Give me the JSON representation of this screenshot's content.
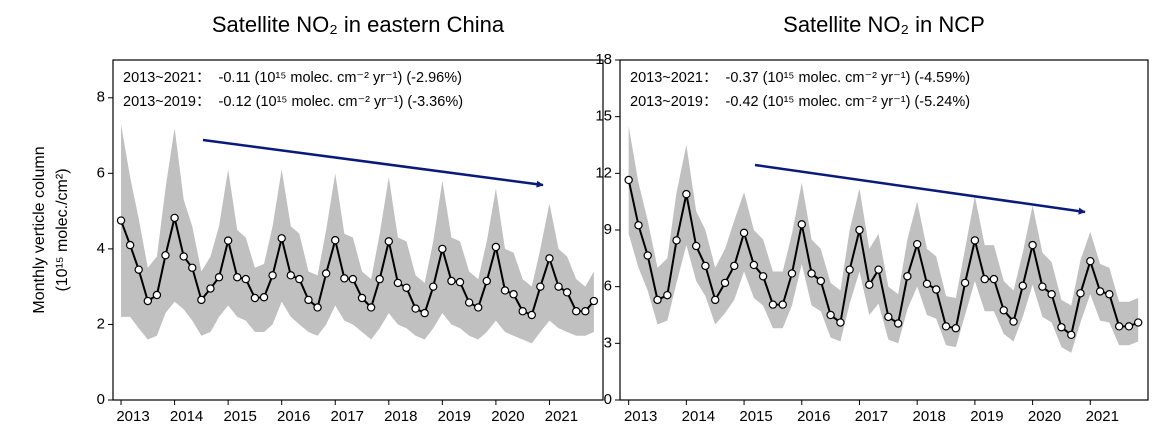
{
  "chart_data": [
    {
      "type": "line",
      "title": "Satellite NO₂ in eastern China",
      "ylabel": [
        "Monthly verticle column",
        "(10¹⁵ molec./cm²)"
      ],
      "annotations": [
        "2013~2021：  -0.11 (10¹⁵ molec. cm⁻² yr⁻¹) (-2.96%)",
        "2013~2019：  -0.12 (10¹⁵ molec. cm⁻² yr⁻¹) (-3.36%)"
      ],
      "x": [
        2013,
        2013.17,
        2013.33,
        2013.5,
        2013.67,
        2013.83,
        2014,
        2014.17,
        2014.33,
        2014.5,
        2014.67,
        2014.83,
        2015,
        2015.17,
        2015.33,
        2015.5,
        2015.67,
        2015.83,
        2016,
        2016.17,
        2016.33,
        2016.5,
        2016.67,
        2016.83,
        2017,
        2017.17,
        2017.33,
        2017.5,
        2017.67,
        2017.83,
        2018,
        2018.17,
        2018.33,
        2018.5,
        2018.67,
        2018.83,
        2019,
        2019.17,
        2019.33,
        2019.5,
        2019.67,
        2019.83,
        2020,
        2020.17,
        2020.33,
        2020.5,
        2020.67,
        2020.83,
        2021,
        2021.17,
        2021.33,
        2021.5,
        2021.67,
        2021.83
      ],
      "values": [
        4.75,
        4.1,
        3.45,
        2.62,
        2.78,
        3.83,
        4.82,
        3.8,
        3.5,
        2.65,
        2.95,
        3.25,
        4.22,
        3.25,
        3.2,
        2.7,
        2.72,
        3.3,
        4.28,
        3.3,
        3.2,
        2.65,
        2.45,
        3.35,
        4.23,
        3.22,
        3.2,
        2.7,
        2.45,
        3.2,
        4.2,
        3.1,
        2.97,
        2.42,
        2.3,
        3.0,
        4.0,
        3.15,
        3.12,
        2.58,
        2.45,
        3.15,
        4.05,
        2.9,
        2.8,
        2.35,
        2.25,
        3.0,
        3.75,
        3.0,
        2.85,
        2.35,
        2.35,
        2.62
      ],
      "band": {
        "color": "#c0c0c0",
        "upper": [
          7.3,
          5.9,
          4.8,
          3.5,
          3.8,
          5.6,
          7.2,
          5.3,
          4.6,
          3.4,
          3.8,
          4.6,
          6.1,
          4.5,
          4.3,
          3.5,
          3.6,
          4.6,
          6.1,
          4.6,
          4.4,
          3.4,
          3.3,
          4.5,
          6.0,
          4.4,
          4.3,
          3.4,
          3.2,
          4.4,
          5.9,
          4.3,
          4.2,
          3.3,
          3.1,
          4.2,
          5.8,
          4.3,
          4.2,
          3.4,
          3.2,
          4.2,
          5.6,
          4.0,
          3.9,
          3.2,
          3.0,
          4.0,
          5.2,
          4.0,
          3.8,
          3.2,
          3.0,
          3.4
        ],
        "lower": [
          2.2,
          2.2,
          1.9,
          1.6,
          1.7,
          2.3,
          2.6,
          2.4,
          2.1,
          1.7,
          1.8,
          2.2,
          2.5,
          2.2,
          2.1,
          1.8,
          1.8,
          2.0,
          2.6,
          2.2,
          2.0,
          1.8,
          1.7,
          2.0,
          2.5,
          2.1,
          2.0,
          1.8,
          1.6,
          1.9,
          2.3,
          2.0,
          1.9,
          1.7,
          1.6,
          1.9,
          2.3,
          2.0,
          1.9,
          1.7,
          1.6,
          1.8,
          2.1,
          1.8,
          1.7,
          1.6,
          1.5,
          1.8,
          2.1,
          1.9,
          1.8,
          1.7,
          1.7,
          1.8
        ]
      },
      "color": "#000000",
      "arrow_color": "#0a1a7a",
      "xlim": [
        2012.85,
        2022.0
      ],
      "xticks": [
        2013,
        2014,
        2015,
        2016,
        2017,
        2018,
        2019,
        2020,
        2021
      ],
      "ylim": [
        0,
        9
      ],
      "yticks": [
        0,
        2,
        4,
        6,
        8
      ]
    },
    {
      "type": "line",
      "title": "Satellite NO₂ in NCP",
      "annotations": [
        "2013~2021：  -0.37 (10¹⁵ molec. cm⁻² yr⁻¹) (-4.59%)",
        "2013~2019：  -0.42 (10¹⁵ molec. cm⁻² yr⁻¹) (-5.24%)"
      ],
      "x": [
        2013,
        2013.17,
        2013.33,
        2013.5,
        2013.67,
        2013.83,
        2014,
        2014.17,
        2014.33,
        2014.5,
        2014.67,
        2014.83,
        2015,
        2015.17,
        2015.33,
        2015.5,
        2015.67,
        2015.83,
        2016,
        2016.17,
        2016.33,
        2016.5,
        2016.67,
        2016.83,
        2017,
        2017.17,
        2017.33,
        2017.5,
        2017.67,
        2017.83,
        2018,
        2018.17,
        2018.33,
        2018.5,
        2018.67,
        2018.83,
        2019,
        2019.17,
        2019.33,
        2019.5,
        2019.67,
        2019.83,
        2020,
        2020.17,
        2020.33,
        2020.5,
        2020.67,
        2020.83,
        2021,
        2021.17,
        2021.33,
        2021.5,
        2021.67,
        2021.83
      ],
      "values": [
        11.65,
        9.25,
        7.65,
        5.3,
        5.55,
        8.45,
        10.9,
        8.15,
        7.1,
        5.3,
        6.2,
        7.1,
        8.85,
        7.15,
        6.55,
        5.05,
        5.05,
        6.7,
        9.3,
        6.7,
        6.3,
        4.5,
        4.1,
        6.9,
        9.0,
        6.1,
        6.9,
        4.4,
        4.05,
        6.55,
        8.25,
        6.15,
        5.85,
        3.9,
        3.8,
        6.2,
        8.45,
        6.4,
        6.4,
        4.75,
        4.15,
        6.05,
        8.2,
        6.0,
        5.6,
        3.85,
        3.45,
        5.65,
        7.35,
        5.75,
        5.6,
        3.9,
        3.9,
        4.1
      ],
      "band": {
        "color": "#c0c0c0",
        "upper": [
          14.5,
          11.5,
          9.5,
          7.0,
          7.5,
          11.0,
          13.5,
          10.0,
          9.0,
          7.0,
          8.0,
          9.5,
          11.0,
          9.0,
          8.5,
          6.8,
          6.8,
          8.8,
          11.5,
          8.5,
          8.0,
          6.2,
          5.8,
          9.0,
          11.2,
          8.0,
          8.8,
          6.0,
          5.6,
          8.5,
          10.5,
          8.0,
          7.6,
          5.5,
          5.4,
          8.0,
          10.8,
          8.2,
          8.2,
          6.3,
          5.8,
          7.8,
          10.3,
          7.8,
          7.3,
          5.3,
          5.0,
          7.4,
          8.9,
          7.2,
          7.0,
          5.2,
          5.2,
          5.4
        ],
        "lower": [
          8.8,
          7.0,
          5.8,
          4.0,
          4.2,
          6.2,
          8.2,
          6.3,
          5.5,
          4.0,
          4.6,
          5.3,
          6.8,
          5.4,
          5.0,
          3.8,
          3.8,
          5.0,
          7.2,
          5.0,
          4.7,
          3.3,
          3.1,
          5.1,
          6.8,
          4.5,
          5.1,
          3.2,
          3.0,
          4.8,
          6.0,
          4.5,
          4.3,
          2.9,
          2.8,
          4.5,
          6.3,
          4.7,
          4.7,
          3.5,
          3.1,
          4.4,
          6.1,
          4.4,
          4.1,
          2.8,
          2.5,
          4.1,
          5.6,
          4.2,
          4.1,
          2.9,
          2.9,
          3.1
        ]
      },
      "color": "#000000",
      "arrow_color": "#0a1a7a",
      "xlim": [
        2012.85,
        2022.0
      ],
      "xticks": [
        2013,
        2014,
        2015,
        2016,
        2017,
        2018,
        2019,
        2020,
        2021
      ],
      "ylim": [
        0,
        18
      ],
      "yticks": [
        0,
        3,
        6,
        9,
        12,
        15,
        18
      ]
    }
  ]
}
